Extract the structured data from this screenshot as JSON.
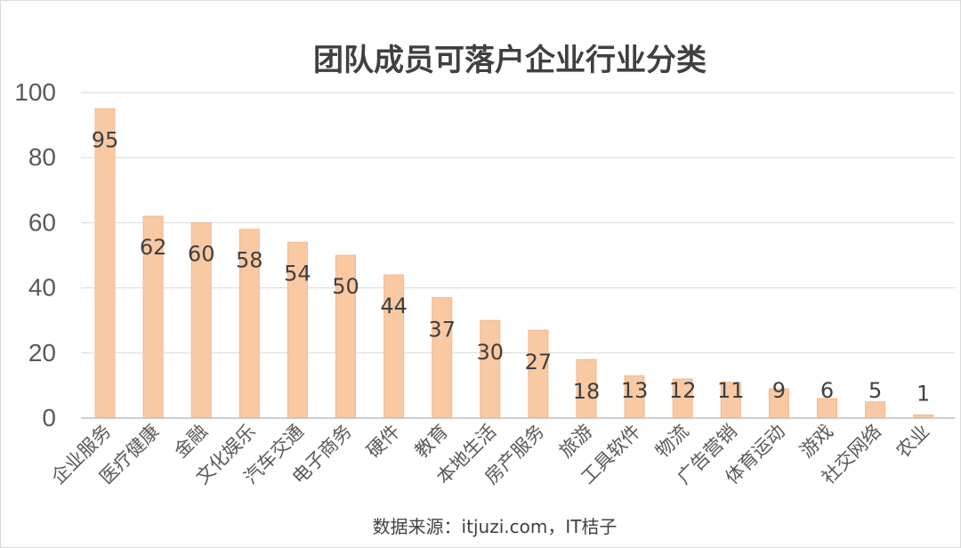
{
  "chart_data": {
    "type": "bar",
    "title": "团队成员可落户企业行业分类",
    "source": "数据来源：itjuzi.com，IT桔子",
    "categories": [
      "企业服务",
      "医疗健康",
      "金融",
      "文化娱乐",
      "汽车交通",
      "电子商务",
      "硬件",
      "教育",
      "本地生活",
      "房产服务",
      "旅游",
      "工具软件",
      "物流",
      "广告营销",
      "体育运动",
      "游戏",
      "社交网络",
      "农业"
    ],
    "values": [
      95,
      62,
      60,
      58,
      54,
      50,
      44,
      37,
      30,
      27,
      18,
      13,
      12,
      11,
      9,
      6,
      5,
      1
    ],
    "yticks": [
      0,
      20,
      40,
      60,
      80,
      100
    ],
    "ylim": [
      0,
      100
    ],
    "xlabel": "",
    "ylabel": "",
    "grid": true,
    "legend": "none",
    "bar_color": "#f8c9a3",
    "bar_edge_color": "#f3b88c",
    "grid_color": "#d9d9d9",
    "text_color": "#404040"
  }
}
